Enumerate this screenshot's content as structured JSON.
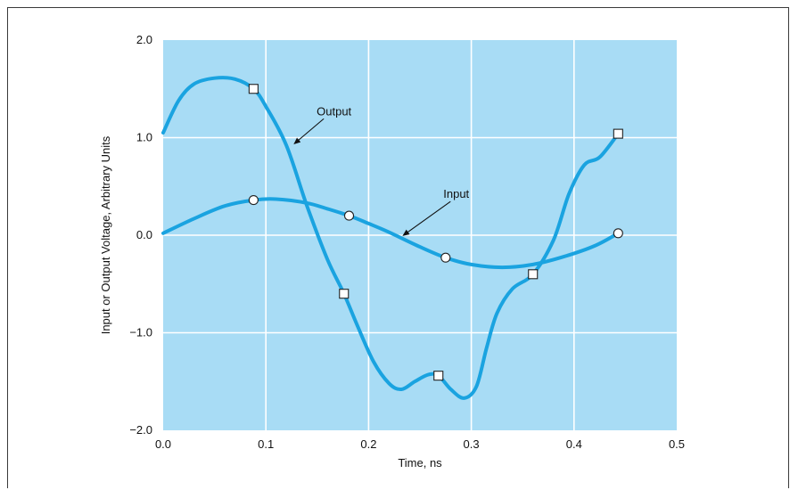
{
  "chart_data": {
    "type": "line",
    "xlabel": "Time, ns",
    "ylabel": "Input or Output Voltage, Arbitrary Units",
    "xlim": [
      0.0,
      0.5
    ],
    "ylim": [
      -2.0,
      2.0
    ],
    "x_ticks": [
      "0.0",
      "0.1",
      "0.2",
      "0.3",
      "0.4",
      "0.5"
    ],
    "y_ticks": [
      "2.0",
      "1.0",
      "0.0",
      "−1.0",
      "−2.0"
    ],
    "grid": true,
    "background_color": "#a8dcf5",
    "line_color": "#1aa3e0",
    "series": [
      {
        "name": "Output",
        "marker": "square",
        "curve": [
          [
            0.0,
            1.05
          ],
          [
            0.015,
            1.38
          ],
          [
            0.03,
            1.55
          ],
          [
            0.05,
            1.61
          ],
          [
            0.07,
            1.6
          ],
          [
            0.088,
            1.5
          ],
          [
            0.1,
            1.32
          ],
          [
            0.12,
            0.92
          ],
          [
            0.14,
            0.3
          ],
          [
            0.16,
            -0.25
          ],
          [
            0.176,
            -0.6
          ],
          [
            0.19,
            -0.95
          ],
          [
            0.205,
            -1.3
          ],
          [
            0.22,
            -1.52
          ],
          [
            0.232,
            -1.58
          ],
          [
            0.245,
            -1.5
          ],
          [
            0.258,
            -1.43
          ],
          [
            0.268,
            -1.44
          ],
          [
            0.28,
            -1.58
          ],
          [
            0.293,
            -1.67
          ],
          [
            0.305,
            -1.55
          ],
          [
            0.315,
            -1.15
          ],
          [
            0.325,
            -0.8
          ],
          [
            0.34,
            -0.55
          ],
          [
            0.36,
            -0.4
          ],
          [
            0.38,
            -0.05
          ],
          [
            0.395,
            0.42
          ],
          [
            0.41,
            0.72
          ],
          [
            0.425,
            0.8
          ],
          [
            0.443,
            1.04
          ]
        ],
        "points": [
          [
            0.088,
            1.5
          ],
          [
            0.176,
            -0.6
          ],
          [
            0.268,
            -1.44
          ],
          [
            0.36,
            -0.4
          ],
          [
            0.443,
            1.04
          ]
        ]
      },
      {
        "name": "Input",
        "marker": "circle",
        "curve": [
          [
            0.0,
            0.02
          ],
          [
            0.03,
            0.17
          ],
          [
            0.06,
            0.3
          ],
          [
            0.088,
            0.36
          ],
          [
            0.11,
            0.37
          ],
          [
            0.14,
            0.33
          ],
          [
            0.16,
            0.27
          ],
          [
            0.181,
            0.2
          ],
          [
            0.2,
            0.12
          ],
          [
            0.22,
            0.03
          ],
          [
            0.25,
            -0.12
          ],
          [
            0.275,
            -0.23
          ],
          [
            0.3,
            -0.3
          ],
          [
            0.33,
            -0.33
          ],
          [
            0.36,
            -0.3
          ],
          [
            0.39,
            -0.22
          ],
          [
            0.42,
            -0.11
          ],
          [
            0.443,
            0.02
          ]
        ],
        "points": [
          [
            0.088,
            0.36
          ],
          [
            0.181,
            0.2
          ],
          [
            0.275,
            -0.23
          ],
          [
            0.443,
            0.02
          ]
        ]
      }
    ],
    "annotations": [
      {
        "text": "Output",
        "target": [
          0.126,
          0.92
        ]
      },
      {
        "text": "Input",
        "target": [
          0.232,
          -0.02
        ]
      }
    ]
  }
}
